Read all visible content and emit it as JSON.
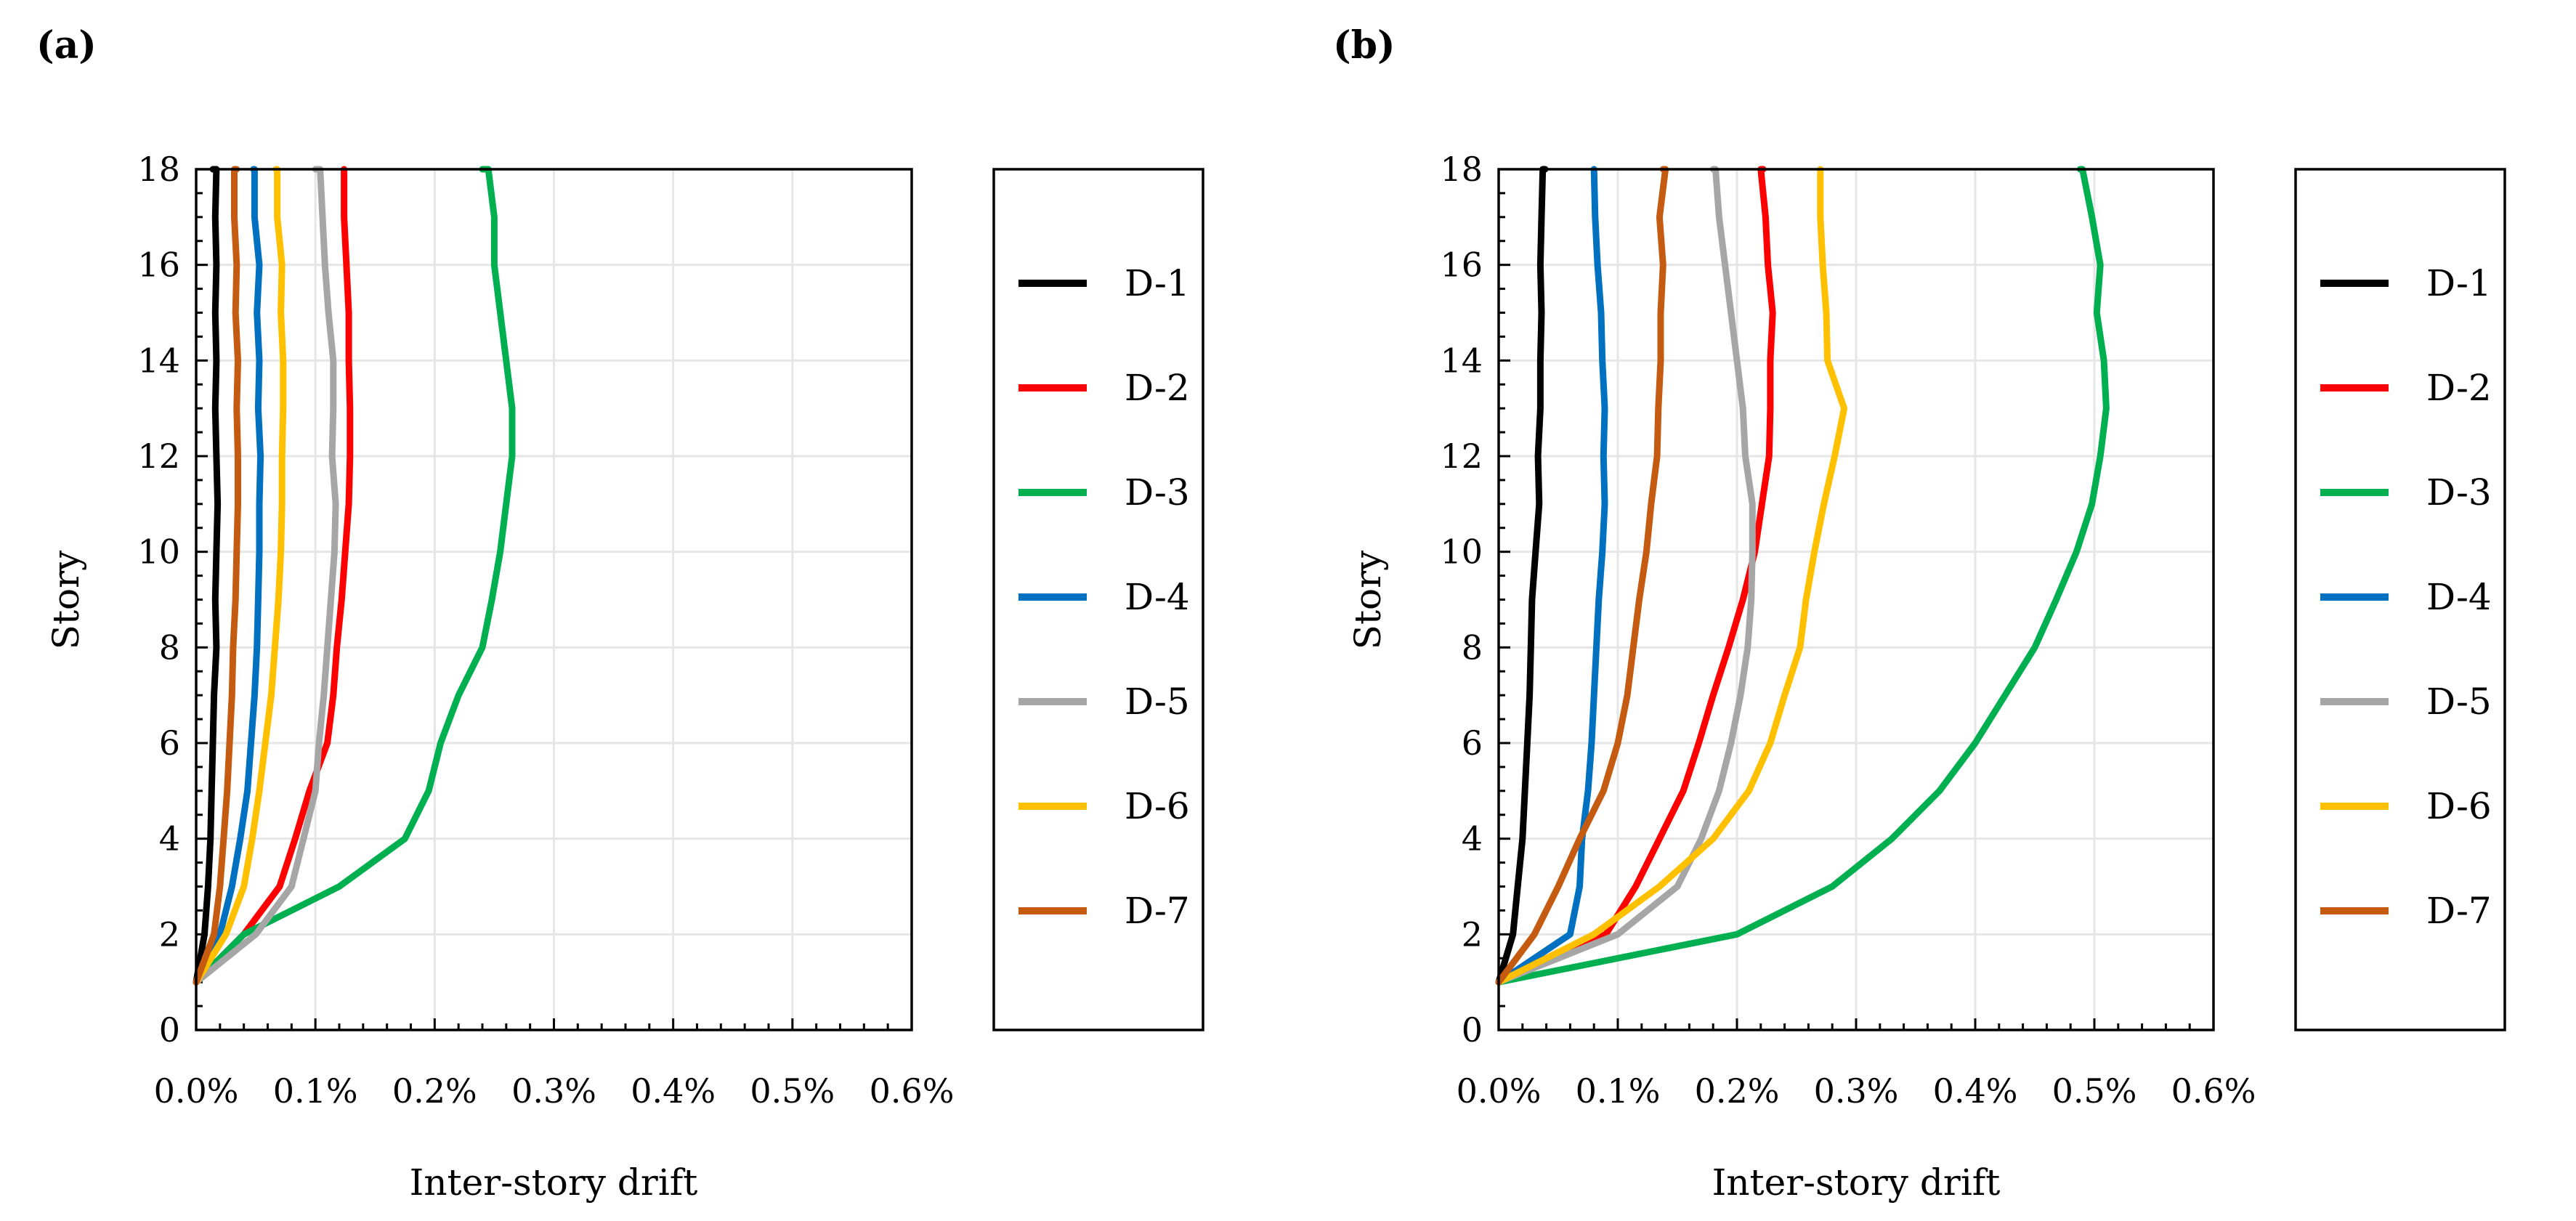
{
  "chart_data": [
    {
      "type": "line",
      "panel_label": "(a)",
      "xlabel": "Inter-story  drift",
      "ylabel": "Story",
      "xlim": [
        0,
        0.6
      ],
      "ylim": [
        0,
        18
      ],
      "xticks": [
        0,
        0.1,
        0.2,
        0.3,
        0.4,
        0.5,
        0.6
      ],
      "xtick_labels": [
        "0.0%",
        "0.1%",
        "0.2%",
        "0.3%",
        "0.4%",
        "0.5%",
        "0.6%"
      ],
      "yticks": [
        0,
        2,
        4,
        6,
        8,
        10,
        12,
        14,
        16,
        18
      ],
      "ytick_labels": [
        "0",
        "2",
        "4",
        "6",
        "8",
        "10",
        "12",
        "14",
        "16",
        "18"
      ],
      "grid": true,
      "legend_position": "right",
      "series": [
        {
          "name": "D-1",
          "color": "#000000",
          "x": [
            0.0,
            0.007,
            0.01,
            0.012,
            0.013,
            0.014,
            0.015,
            0.017,
            0.016,
            0.017,
            0.018,
            0.017,
            0.016,
            0.017,
            0.016,
            0.017,
            0.016,
            0.017,
            0.014
          ],
          "y": [
            1,
            2,
            3,
            4,
            5,
            6,
            7,
            8,
            9,
            10,
            11,
            12,
            13,
            14,
            15,
            16,
            17,
            18,
            18
          ]
        },
        {
          "name": "D-2",
          "color": "#ff0000",
          "x": [
            0.0,
            0.04,
            0.07,
            0.083,
            0.095,
            0.11,
            0.115,
            0.118,
            0.122,
            0.125,
            0.128,
            0.129,
            0.129,
            0.128,
            0.128,
            0.126,
            0.124,
            0.124,
            0.124
          ],
          "y": [
            1,
            2,
            3,
            4,
            5,
            6,
            7,
            8,
            9,
            10,
            11,
            12,
            13,
            14,
            15,
            16,
            17,
            18,
            18
          ]
        },
        {
          "name": "D-3",
          "color": "#00b050",
          "x": [
            0.0,
            0.04,
            0.12,
            0.175,
            0.195,
            0.205,
            0.22,
            0.24,
            0.248,
            0.255,
            0.26,
            0.265,
            0.265,
            0.26,
            0.255,
            0.25,
            0.25,
            0.245,
            0.24
          ],
          "y": [
            1,
            2,
            3,
            4,
            5,
            6,
            7,
            8,
            9,
            10,
            11,
            12,
            13,
            14,
            15,
            16,
            17,
            18,
            18
          ]
        },
        {
          "name": "D-4",
          "color": "#0070c0",
          "x": [
            0.0,
            0.02,
            0.03,
            0.037,
            0.043,
            0.046,
            0.049,
            0.051,
            0.052,
            0.053,
            0.053,
            0.054,
            0.052,
            0.053,
            0.051,
            0.053,
            0.049,
            0.049,
            0.048
          ],
          "y": [
            1,
            2,
            3,
            4,
            5,
            6,
            7,
            8,
            9,
            10,
            11,
            12,
            13,
            14,
            15,
            16,
            17,
            18,
            18
          ]
        },
        {
          "name": "D-5",
          "color": "#a6a6a6",
          "x": [
            0.0,
            0.05,
            0.08,
            0.09,
            0.1,
            0.103,
            0.107,
            0.11,
            0.113,
            0.116,
            0.117,
            0.114,
            0.115,
            0.115,
            0.111,
            0.108,
            0.106,
            0.104,
            0.1
          ],
          "y": [
            1,
            2,
            3,
            4,
            5,
            6,
            7,
            8,
            9,
            10,
            11,
            12,
            13,
            14,
            15,
            16,
            17,
            18,
            18
          ]
        },
        {
          "name": "D-6",
          "color": "#ffc000",
          "x": [
            0.0,
            0.025,
            0.04,
            0.047,
            0.053,
            0.058,
            0.063,
            0.066,
            0.069,
            0.071,
            0.072,
            0.072,
            0.073,
            0.073,
            0.071,
            0.072,
            0.068,
            0.068,
            0.067
          ],
          "y": [
            1,
            2,
            3,
            4,
            5,
            6,
            7,
            8,
            9,
            10,
            11,
            12,
            13,
            14,
            15,
            16,
            17,
            18,
            18
          ]
        },
        {
          "name": "D-7",
          "color": "#c55a11",
          "x": [
            0.0,
            0.015,
            0.02,
            0.023,
            0.026,
            0.028,
            0.03,
            0.031,
            0.033,
            0.034,
            0.035,
            0.035,
            0.034,
            0.035,
            0.033,
            0.034,
            0.032,
            0.032,
            0.034
          ],
          "y": [
            1,
            2,
            3,
            4,
            5,
            6,
            7,
            8,
            9,
            10,
            11,
            12,
            13,
            14,
            15,
            16,
            17,
            18,
            18
          ]
        }
      ]
    },
    {
      "type": "line",
      "panel_label": "(b)",
      "xlabel": "Inter-story  drift",
      "ylabel": "Story",
      "xlim": [
        0,
        0.6
      ],
      "ylim": [
        0,
        18
      ],
      "xticks": [
        0,
        0.1,
        0.2,
        0.3,
        0.4,
        0.5,
        0.6
      ],
      "xtick_labels": [
        "0.0%",
        "0.1%",
        "0.2%",
        "0.3%",
        "0.4%",
        "0.5%",
        "0.6%"
      ],
      "yticks": [
        0,
        2,
        4,
        6,
        8,
        10,
        12,
        14,
        16,
        18
      ],
      "ytick_labels": [
        "0",
        "2",
        "4",
        "6",
        "8",
        "10",
        "12",
        "14",
        "16",
        "18"
      ],
      "grid": true,
      "legend_position": "right",
      "series": [
        {
          "name": "D-1",
          "color": "#000000",
          "x": [
            0.0,
            0.012,
            0.016,
            0.02,
            0.022,
            0.024,
            0.026,
            0.027,
            0.028,
            0.031,
            0.034,
            0.033,
            0.035,
            0.035,
            0.036,
            0.035,
            0.036,
            0.037,
            0.039
          ],
          "y": [
            1,
            2,
            3,
            4,
            5,
            6,
            7,
            8,
            9,
            10,
            11,
            12,
            13,
            14,
            15,
            16,
            17,
            18,
            18
          ]
        },
        {
          "name": "D-2",
          "color": "#ff0000",
          "x": [
            0.0,
            0.09,
            0.115,
            0.135,
            0.155,
            0.168,
            0.18,
            0.193,
            0.205,
            0.215,
            0.221,
            0.227,
            0.228,
            0.228,
            0.23,
            0.226,
            0.224,
            0.22,
            0.222
          ],
          "y": [
            1,
            2,
            3,
            4,
            5,
            6,
            7,
            8,
            9,
            10,
            11,
            12,
            13,
            14,
            15,
            16,
            17,
            18,
            18
          ]
        },
        {
          "name": "D-3",
          "color": "#00b050",
          "x": [
            0.0,
            0.2,
            0.28,
            0.33,
            0.37,
            0.4,
            0.425,
            0.45,
            0.468,
            0.485,
            0.498,
            0.505,
            0.51,
            0.508,
            0.502,
            0.505,
            0.498,
            0.49,
            0.488
          ],
          "y": [
            1,
            2,
            3,
            4,
            5,
            6,
            7,
            8,
            9,
            10,
            11,
            12,
            13,
            14,
            15,
            16,
            17,
            18,
            18
          ]
        },
        {
          "name": "D-4",
          "color": "#0070c0",
          "x": [
            0.0,
            0.06,
            0.068,
            0.07,
            0.075,
            0.078,
            0.08,
            0.082,
            0.084,
            0.087,
            0.089,
            0.088,
            0.089,
            0.087,
            0.086,
            0.083,
            0.081,
            0.08,
            0.08
          ],
          "y": [
            1,
            2,
            3,
            4,
            5,
            6,
            7,
            8,
            9,
            10,
            11,
            12,
            13,
            14,
            15,
            16,
            17,
            18,
            18
          ]
        },
        {
          "name": "D-5",
          "color": "#a6a6a6",
          "x": [
            0.0,
            0.1,
            0.15,
            0.17,
            0.185,
            0.195,
            0.203,
            0.209,
            0.212,
            0.213,
            0.213,
            0.207,
            0.205,
            0.2,
            0.195,
            0.19,
            0.185,
            0.182,
            0.18
          ],
          "y": [
            1,
            2,
            3,
            4,
            5,
            6,
            7,
            8,
            9,
            10,
            11,
            12,
            13,
            14,
            15,
            16,
            17,
            18,
            18
          ]
        },
        {
          "name": "D-6",
          "color": "#ffc000",
          "x": [
            0.0,
            0.08,
            0.135,
            0.18,
            0.21,
            0.228,
            0.24,
            0.253,
            0.258,
            0.265,
            0.273,
            0.282,
            0.29,
            0.276,
            0.275,
            0.272,
            0.27,
            0.27,
            0.27
          ],
          "y": [
            1,
            2,
            3,
            4,
            5,
            6,
            7,
            8,
            9,
            10,
            11,
            12,
            13,
            14,
            15,
            16,
            17,
            18,
            18
          ]
        },
        {
          "name": "D-7",
          "color": "#c55a11",
          "x": [
            0.0,
            0.03,
            0.05,
            0.068,
            0.088,
            0.1,
            0.108,
            0.113,
            0.118,
            0.124,
            0.128,
            0.133,
            0.134,
            0.136,
            0.136,
            0.138,
            0.135,
            0.14,
            0.138
          ],
          "y": [
            1,
            2,
            3,
            4,
            5,
            6,
            7,
            8,
            9,
            10,
            11,
            12,
            13,
            14,
            15,
            16,
            17,
            18,
            18
          ]
        }
      ]
    }
  ]
}
